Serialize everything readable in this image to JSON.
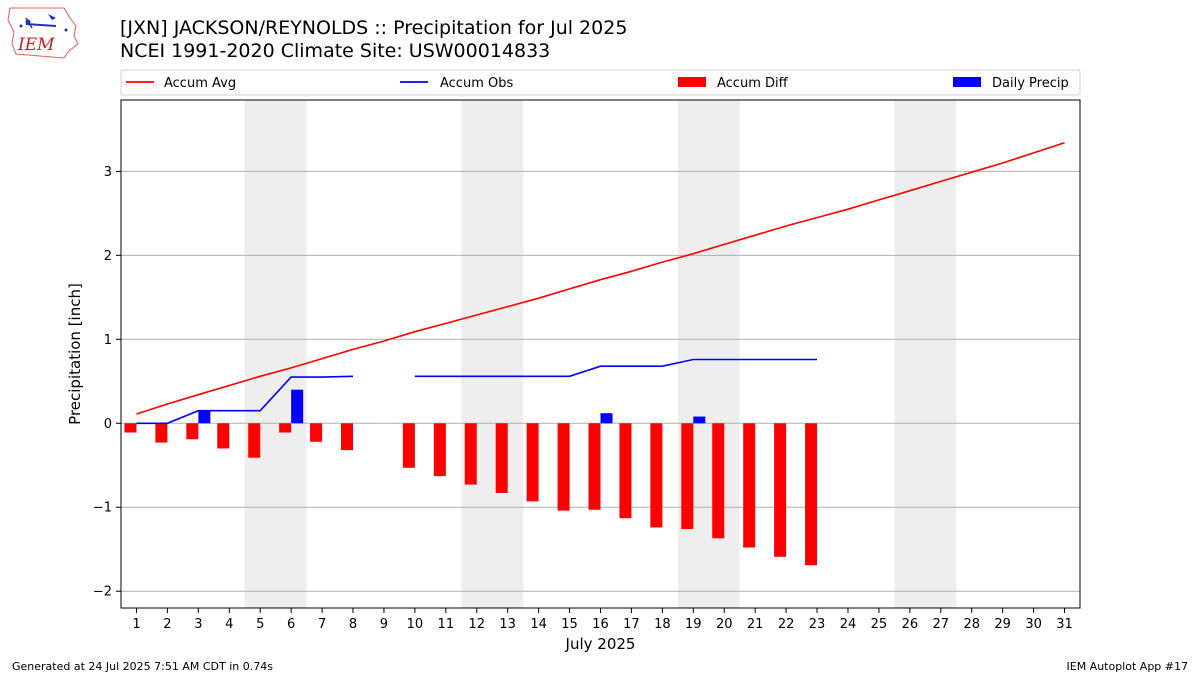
{
  "header": {
    "title_line1": "[JXN] JACKSON/REYNOLDS :: Precipitation for Jul 2025",
    "title_line2": "NCEI 1991-2020 Climate Site: USW00014833",
    "logo_text": "IEM"
  },
  "footer": {
    "generated": "Generated at 24 Jul 2025 7:51 AM CDT in 0.74s",
    "app": "IEM Autoplot App #17"
  },
  "chart_data": {
    "type": "line",
    "xlabel": "July 2025",
    "ylabel": "Precipitation [inch]",
    "xlim": [
      0.5,
      31.5
    ],
    "ylim": [
      -2.2,
      3.85
    ],
    "grid": "horizontal",
    "legend_placement": "top, above plot",
    "x_ticks": [
      1,
      2,
      3,
      4,
      5,
      6,
      7,
      8,
      9,
      10,
      11,
      12,
      13,
      14,
      15,
      16,
      17,
      18,
      19,
      20,
      21,
      22,
      23,
      24,
      25,
      26,
      27,
      28,
      29,
      30,
      31
    ],
    "y_ticks": [
      -2,
      -1,
      0,
      1,
      2,
      3
    ],
    "weekend_shading": [
      [
        4.5,
        6.5
      ],
      [
        11.5,
        13.5
      ],
      [
        18.5,
        20.5
      ],
      [
        25.5,
        27.5
      ]
    ],
    "legend": [
      {
        "label": "Accum Avg",
        "kind": "line",
        "color": "#ff0000"
      },
      {
        "label": "Accum Obs",
        "kind": "line",
        "color": "#0000ff"
      },
      {
        "label": "Accum Diff",
        "kind": "bar",
        "color": "#ff0000"
      },
      {
        "label": "Daily Precip",
        "kind": "bar",
        "color": "#0000ff"
      }
    ],
    "series": [
      {
        "name": "Accum Avg",
        "color": "#ff0000",
        "x": [
          1,
          2,
          3,
          4,
          5,
          6,
          7,
          8,
          9,
          10,
          11,
          12,
          13,
          14,
          15,
          16,
          17,
          18,
          19,
          20,
          21,
          22,
          23,
          24,
          25,
          26,
          27,
          28,
          29,
          30,
          31
        ],
        "values": [
          0.11,
          0.23,
          0.34,
          0.45,
          0.56,
          0.66,
          0.77,
          0.88,
          0.98,
          1.09,
          1.19,
          1.29,
          1.39,
          1.49,
          1.6,
          1.71,
          1.81,
          1.92,
          2.02,
          2.13,
          2.24,
          2.35,
          2.45,
          2.55,
          2.66,
          2.77,
          2.88,
          2.99,
          3.1,
          3.22,
          3.34
        ]
      },
      {
        "name": "Accum Obs",
        "color": "#0000ff",
        "x": [
          1,
          2,
          3,
          4,
          5,
          6,
          7,
          8,
          9,
          10,
          11,
          12,
          13,
          14,
          15,
          16,
          17,
          18,
          19,
          20,
          21,
          22,
          23
        ],
        "values": [
          0.0,
          0.0,
          0.15,
          0.15,
          0.15,
          0.55,
          0.55,
          0.56,
          null,
          0.56,
          0.56,
          0.56,
          0.56,
          0.56,
          0.56,
          0.68,
          0.68,
          0.68,
          0.76,
          0.76,
          0.76,
          0.76,
          0.76
        ]
      },
      {
        "name": "Accum Diff",
        "color": "#ff0000",
        "x": [
          1,
          2,
          3,
          4,
          5,
          6,
          7,
          8,
          10,
          11,
          12,
          13,
          14,
          15,
          16,
          17,
          18,
          19,
          20,
          21,
          22,
          23
        ],
        "values": [
          -0.11,
          -0.23,
          -0.19,
          -0.3,
          -0.41,
          -0.11,
          -0.22,
          -0.32,
          -0.53,
          -0.63,
          -0.73,
          -0.83,
          -0.93,
          -1.04,
          -1.03,
          -1.13,
          -1.24,
          -1.26,
          -1.37,
          -1.48,
          -1.59,
          -1.69
        ]
      },
      {
        "name": "Daily Precip",
        "color": "#0000ff",
        "x": [
          3,
          6,
          16,
          19
        ],
        "values": [
          0.15,
          0.4,
          0.12,
          0.08
        ]
      }
    ]
  }
}
